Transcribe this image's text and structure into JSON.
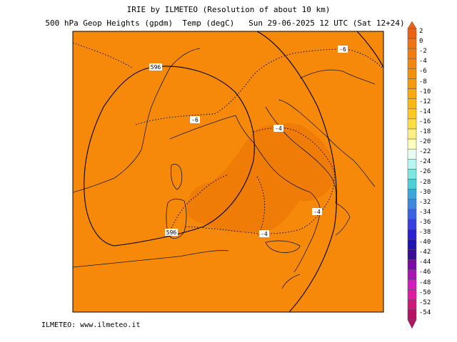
{
  "header": {
    "line1": "IRIE by ILMETEO (Resolution of about 10 km)",
    "line2": "500 hPa Geop Heights (gpdm)  Temp (degC)   Sun 29-06-2025 12 UTC (Sat 12+24)"
  },
  "map": {
    "background_color": "#f7890a",
    "warm_zone_color": "#f07c08",
    "geopotential_labels": [
      "596",
      "596"
    ],
    "temperature_labels": [
      "-6",
      "-6",
      "-4",
      "-4",
      "-4"
    ]
  },
  "colorbar": {
    "labels": [
      "2",
      "0",
      "-2",
      "-4",
      "-6",
      "-8",
      "-10",
      "-12",
      "-14",
      "-16",
      "-18",
      "-20",
      "-22",
      "-24",
      "-26",
      "-28",
      "-30",
      "-32",
      "-34",
      "-36",
      "-38",
      "-40",
      "-42",
      "-44",
      "-46",
      "-48",
      "-50",
      "-52",
      "-54"
    ],
    "colors": [
      "#f06010",
      "#f27212",
      "#f37c10",
      "#f5860c",
      "#f69008",
      "#f89a08",
      "#fba80a",
      "#fcb810",
      "#fdc820",
      "#fde040",
      "#fdf080",
      "#fefec0",
      "#e8fdf2",
      "#b8f5ee",
      "#7ae8e0",
      "#4cd0d6",
      "#3aa8d8",
      "#3e86e0",
      "#3a62e8",
      "#3440e6",
      "#2a20d8",
      "#1c12b8",
      "#3a0a9a",
      "#7a0aa8",
      "#a814b8",
      "#d41cc0",
      "#e41aa0",
      "#d01878",
      "#b81062"
    ]
  },
  "footer": {
    "credit": "ILMETEO: www.ilmeteo.it"
  }
}
